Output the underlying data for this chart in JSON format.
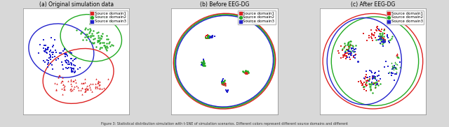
{
  "fig_width": 6.4,
  "fig_height": 1.82,
  "dpi": 100,
  "fig_bg": "#d8d8d8",
  "panel_bg": "#ffffff",
  "panel_titles": [
    "(a) Original simulation data",
    "(b) Before EEG-DG",
    "(c) After EEG-DG"
  ],
  "legend_labels": [
    "Source domain1",
    "Source domain2",
    "Source domain3"
  ],
  "legend_colors": [
    "#dd2222",
    "#22aa22",
    "#2222cc"
  ],
  "legend_markers": [
    "s",
    "P",
    "s"
  ],
  "RED": "#dd2222",
  "GREEN": "#22aa22",
  "BLUE": "#2222cc",
  "caption": "Figure 3: Statistical distribution simulation with t-SNE of simulation scenarios. Different colors represent different source domains and different"
}
